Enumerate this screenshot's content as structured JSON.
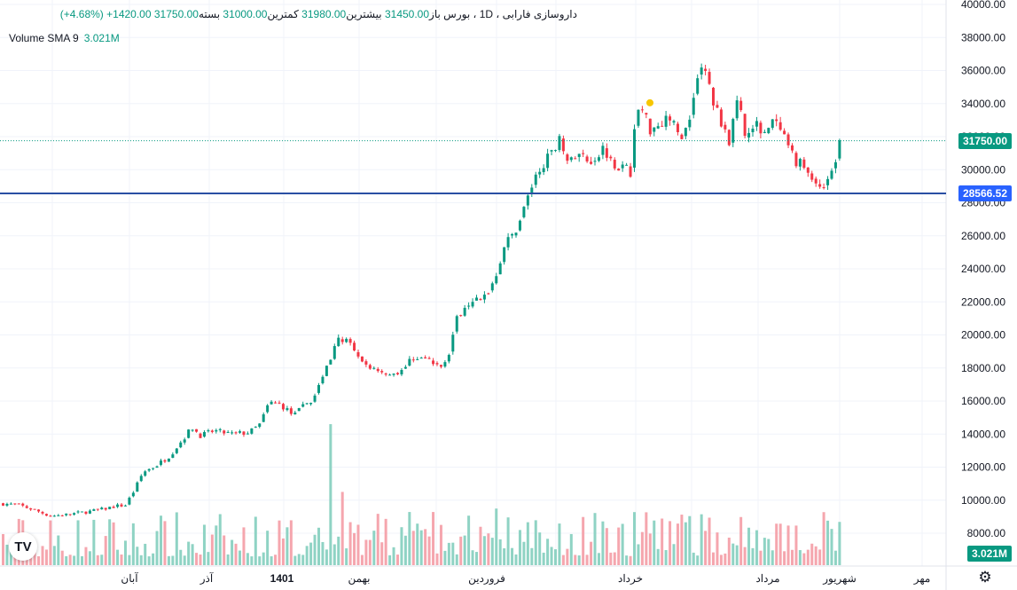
{
  "header": {
    "symbol": "داروسازی فارابی",
    "sep1": "،",
    "interval": "1D",
    "sep2": "،",
    "exchange": "بورس",
    "open_label": "باز",
    "open": "31450.00",
    "high_label": "بیشترین",
    "high": "31980.00",
    "low_label": "کمترین",
    "low": "31000.00",
    "close_label": "بسته",
    "close": "31750.00",
    "change": "+1420.00",
    "change_pct": "(+4.68%)"
  },
  "volume_legend": {
    "label": "Volume SMA 9",
    "value": "3.021M"
  },
  "badges": {
    "last_price": "31750.00",
    "line_price": "28566.52",
    "volume": "3.021M"
  },
  "logo_text": "TV",
  "colors": {
    "up": "#089981",
    "down": "#f23645",
    "up_vol": "#8fd3c4",
    "down_vol": "#f5a6ae",
    "line": "#2a4fa3",
    "grid": "#f0f3fa"
  },
  "icons": {
    "settings": "gear-icon",
    "logo": "tradingview-logo-icon"
  },
  "chart_data": {
    "type": "candlestick",
    "y_ticks": [
      "40000.00",
      "38000.00",
      "36000.00",
      "34000.00",
      "32000.00",
      "30000.00",
      "28000.00",
      "26000.00",
      "24000.00",
      "22000.00",
      "20000.00",
      "18000.00",
      "16000.00",
      "14000.00",
      "12000.00",
      "10000.00",
      "8000.00"
    ],
    "ylim": [
      6400,
      40000
    ],
    "x_labels": [
      "آبان",
      "آذر",
      "1401",
      "بهمن",
      "فروردین",
      "خرداد",
      "مرداد",
      "شهریور",
      "مهر"
    ],
    "x_labels_bold": [
      false,
      false,
      true,
      false,
      false,
      false,
      false,
      false,
      false
    ],
    "last_close": 31750,
    "horizontal_line": 28566.52,
    "close_path": [
      [
        0,
        9800
      ],
      [
        20,
        9700
      ],
      [
        38,
        9400
      ],
      [
        55,
        9050
      ],
      [
        70,
        9100
      ],
      [
        90,
        9250
      ],
      [
        110,
        9400
      ],
      [
        130,
        9650
      ],
      [
        140,
        9700
      ],
      [
        150,
        10600
      ],
      [
        160,
        11700
      ],
      [
        175,
        12100
      ],
      [
        190,
        12700
      ],
      [
        205,
        13700
      ],
      [
        215,
        14400
      ],
      [
        225,
        13900
      ],
      [
        240,
        14200
      ],
      [
        260,
        14000
      ],
      [
        280,
        14100
      ],
      [
        292,
        14600
      ],
      [
        302,
        15900
      ],
      [
        315,
        15800
      ],
      [
        330,
        15100
      ],
      [
        345,
        15900
      ],
      [
        355,
        16300
      ],
      [
        362,
        17600
      ],
      [
        372,
        18700
      ],
      [
        382,
        19900
      ],
      [
        392,
        19500
      ],
      [
        405,
        18300
      ],
      [
        420,
        18000
      ],
      [
        440,
        17600
      ],
      [
        455,
        18000
      ],
      [
        465,
        18700
      ],
      [
        480,
        18500
      ],
      [
        495,
        18000
      ],
      [
        505,
        19000
      ],
      [
        512,
        20700
      ],
      [
        520,
        21600
      ],
      [
        530,
        22200
      ],
      [
        540,
        22000
      ],
      [
        552,
        22900
      ],
      [
        558,
        23700
      ],
      [
        568,
        25500
      ],
      [
        578,
        26100
      ],
      [
        588,
        27400
      ],
      [
        597,
        28900
      ],
      [
        605,
        29600
      ],
      [
        612,
        30500
      ],
      [
        620,
        30800
      ],
      [
        630,
        32200
      ],
      [
        640,
        30300
      ],
      [
        650,
        30900
      ],
      [
        665,
        30600
      ],
      [
        680,
        31300
      ],
      [
        695,
        30200
      ],
      [
        710,
        29900
      ],
      [
        716,
        33500
      ],
      [
        722,
        33700
      ],
      [
        732,
        32500
      ],
      [
        742,
        32800
      ],
      [
        752,
        33300
      ],
      [
        765,
        32000
      ],
      [
        775,
        32600
      ],
      [
        782,
        35100
      ],
      [
        790,
        36300
      ],
      [
        797,
        35400
      ],
      [
        805,
        33700
      ],
      [
        815,
        32700
      ],
      [
        822,
        31500
      ],
      [
        830,
        34500
      ],
      [
        840,
        32100
      ],
      [
        852,
        32600
      ],
      [
        862,
        32400
      ],
      [
        872,
        32900
      ],
      [
        882,
        31900
      ],
      [
        893,
        30700
      ],
      [
        905,
        30200
      ],
      [
        915,
        29400
      ],
      [
        925,
        28900
      ],
      [
        932,
        29600
      ],
      [
        940,
        30300
      ],
      [
        946,
        31800
      ],
      [
        949,
        31750
      ]
    ],
    "volume_spikes": [
      [
        373,
        14600
      ],
      [
        385,
        10500
      ],
      [
        410,
        7600
      ]
    ],
    "volume_base_range": [
      6600,
      9300
    ],
    "annotation_dot": {
      "x_index": 733,
      "value": 34050
    }
  }
}
